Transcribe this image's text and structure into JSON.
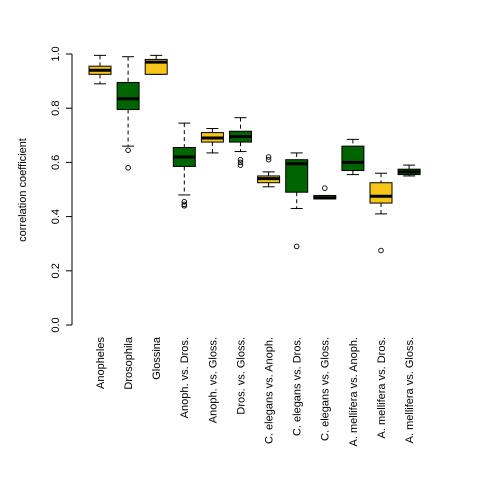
{
  "chart_data": {
    "type": "box",
    "ylabel": "correlation coefficient",
    "ylim": [
      0.0,
      1.0
    ],
    "yticks": [
      "0.0",
      "0.2",
      "0.4",
      "0.6",
      "0.8",
      "1.0"
    ],
    "ytick_values": [
      0.0,
      0.2,
      0.4,
      0.6,
      0.8,
      1.0
    ],
    "categories": [
      "Anopheles",
      "Drosophila",
      "Glossina",
      "Anoph. vs. Dros.",
      "Anoph. vs. Gloss.",
      "Dros. vs. Gloss.",
      "C. elegans vs. Anoph.",
      "C. elegans vs. Dros.",
      "C. elegans vs. Gloss.",
      "A. mellifera vs. Anoph.",
      "A. mellifera vs. Dros.",
      "A. mellifera vs. Gloss."
    ],
    "boxes": [
      {
        "min": 0.89,
        "q1": 0.925,
        "median": 0.94,
        "q3": 0.955,
        "max": 0.995,
        "color": "#f5c518",
        "outliers": []
      },
      {
        "min": 0.66,
        "q1": 0.795,
        "median": 0.835,
        "q3": 0.895,
        "max": 0.99,
        "color": "#006400",
        "outliers": [
          0.645,
          0.58
        ]
      },
      {
        "min": 0.925,
        "q1": 0.925,
        "median": 0.97,
        "q3": 0.98,
        "max": 0.995,
        "color": "#f5c518",
        "outliers": []
      },
      {
        "min": 0.48,
        "q1": 0.585,
        "median": 0.62,
        "q3": 0.655,
        "max": 0.745,
        "color": "#006400",
        "outliers": [
          0.455,
          0.445,
          0.44
        ]
      },
      {
        "min": 0.635,
        "q1": 0.675,
        "median": 0.69,
        "q3": 0.71,
        "max": 0.725,
        "color": "#f5c518",
        "outliers": []
      },
      {
        "min": 0.64,
        "q1": 0.675,
        "median": 0.695,
        "q3": 0.715,
        "max": 0.765,
        "color": "#006400",
        "outliers": [
          0.61,
          0.6,
          0.59
        ]
      },
      {
        "min": 0.51,
        "q1": 0.525,
        "median": 0.54,
        "q3": 0.55,
        "max": 0.565,
        "color": "#f5c518",
        "outliers": [
          0.62,
          0.61
        ]
      },
      {
        "min": 0.43,
        "q1": 0.49,
        "median": 0.595,
        "q3": 0.61,
        "max": 0.635,
        "color": "#006400",
        "outliers": [
          0.29
        ]
      },
      {
        "min": 0.465,
        "q1": 0.465,
        "median": 0.47,
        "q3": 0.478,
        "max": 0.478,
        "color": "#f5c518",
        "outliers": [
          0.505
        ]
      },
      {
        "min": 0.555,
        "q1": 0.57,
        "median": 0.6,
        "q3": 0.66,
        "max": 0.685,
        "color": "#006400",
        "outliers": []
      },
      {
        "min": 0.41,
        "q1": 0.45,
        "median": 0.475,
        "q3": 0.525,
        "max": 0.56,
        "color": "#f5c518",
        "outliers": [
          0.275
        ]
      },
      {
        "min": 0.55,
        "q1": 0.555,
        "median": 0.565,
        "q3": 0.575,
        "max": 0.59,
        "color": "#006400",
        "outliers": []
      }
    ]
  }
}
